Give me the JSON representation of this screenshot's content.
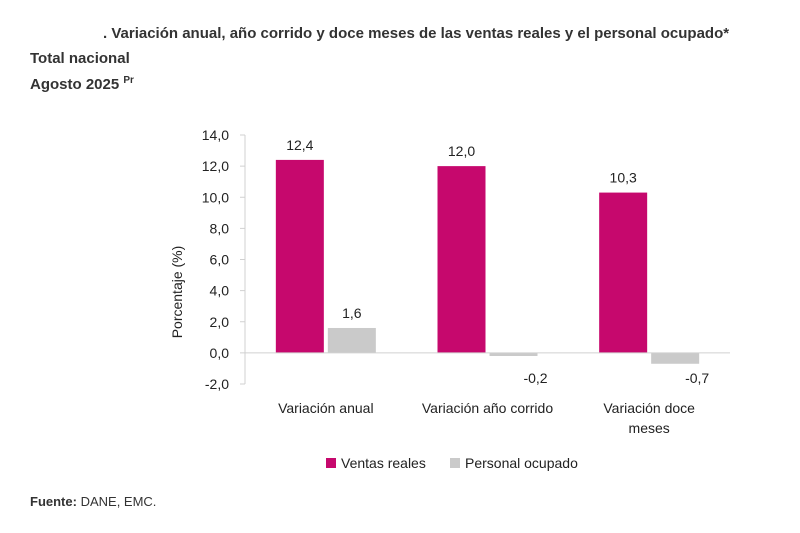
{
  "chart_data": {
    "type": "bar",
    "title": ". Variación anual, año corrido y doce meses de las ventas reales y el personal ocupado*",
    "subtitle": "Total nacional",
    "date": "Agosto 2025",
    "date_note": "Pr",
    "ylabel": "Porcentaje (%)",
    "categories": [
      "Variación anual",
      "Variación año corrido",
      "Variación doce meses"
    ],
    "series": [
      {
        "name": "Ventas reales",
        "color": "#c6086d",
        "values": [
          12.4,
          12.0,
          10.3
        ],
        "value_labels": [
          "12,4",
          "12,0",
          "10,3"
        ]
      },
      {
        "name": "Personal ocupado",
        "color": "#cacaca",
        "values": [
          1.6,
          -0.2,
          -0.7
        ],
        "value_labels": [
          "1,6",
          "-0,2",
          "-0,7"
        ]
      }
    ],
    "ylim": [
      -2,
      14
    ],
    "yticks": [
      {
        "value": -2,
        "label": "-2,0"
      },
      {
        "value": 0,
        "label": "0,0"
      },
      {
        "value": 2,
        "label": "2,0"
      },
      {
        "value": 4,
        "label": "4,0"
      },
      {
        "value": 6,
        "label": "6,0"
      },
      {
        "value": 8,
        "label": "8,0"
      },
      {
        "value": 10,
        "label": "10,0"
      },
      {
        "value": 12,
        "label": "12,0"
      },
      {
        "value": 14,
        "label": "14,0"
      }
    ],
    "source_label": "Fuente:",
    "source": "DANE, EMC."
  }
}
